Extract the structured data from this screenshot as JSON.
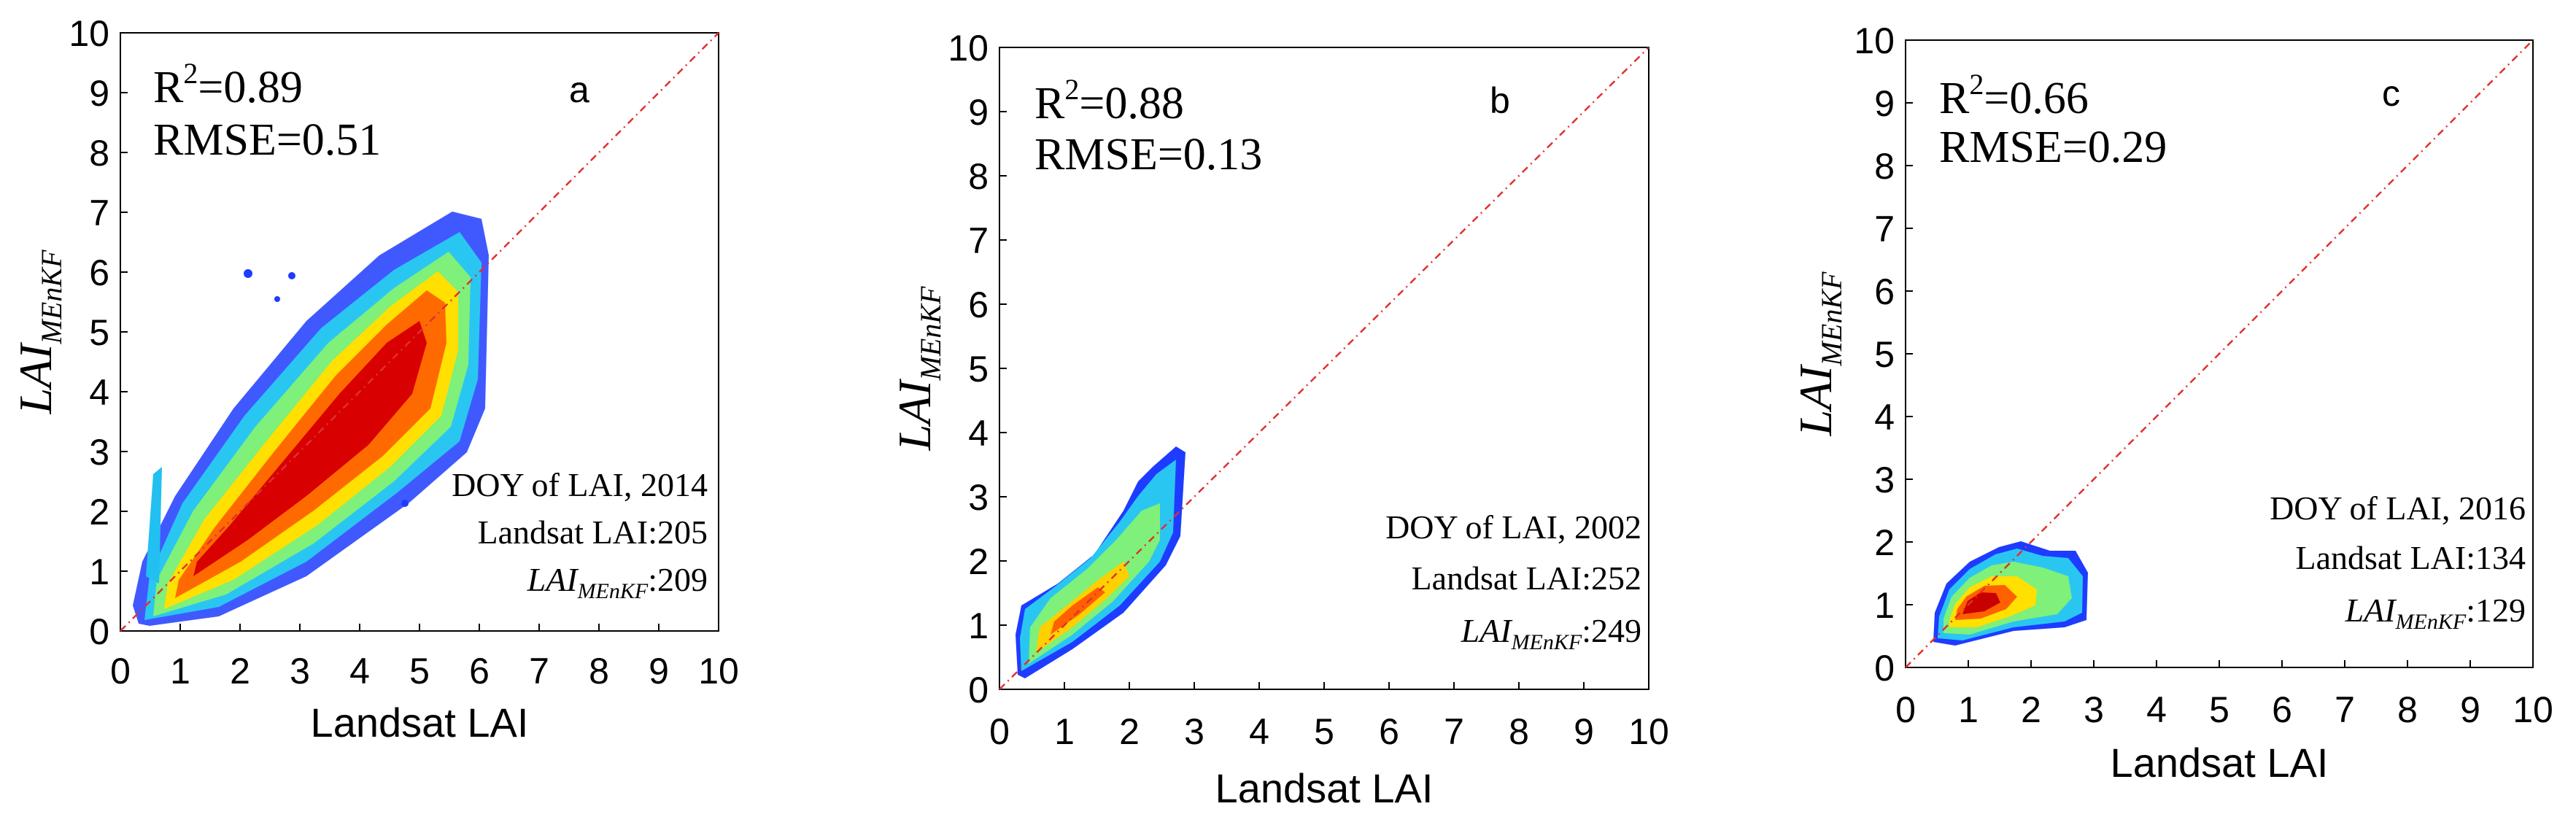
{
  "chart_data": [
    {
      "type": "scatter",
      "panel_label": "a",
      "xlabel": "Landsat LAI",
      "ylabel_main": "LAI",
      "ylabel_sub": "MEnKF",
      "xlim": [
        0,
        10
      ],
      "ylim": [
        0,
        10
      ],
      "x_ticks": [
        "0",
        "1",
        "2",
        "3",
        "4",
        "5",
        "6",
        "7",
        "8",
        "9",
        "10"
      ],
      "y_ticks": [
        "0",
        "1",
        "2",
        "3",
        "4",
        "5",
        "6",
        "7",
        "8",
        "9",
        "10"
      ],
      "r2_label": "R",
      "r2_sup": "2",
      "r2_value": "=0.89",
      "rmse": "RMSE=0.51",
      "doy_title": "DOY of LAI, 2014",
      "landsat_label": "Landsat LAI:205",
      "menkf_main": "LAI",
      "menkf_sub": "MEnKF",
      "menkf_value": ":209",
      "one_to_one_line": true,
      "density_cloud": [
        [
          0.35,
          0.2
        ],
        [
          1.5,
          1.2
        ],
        [
          2.5,
          2.3
        ],
        [
          3.5,
          3.3
        ],
        [
          4.5,
          4.2
        ],
        [
          5.5,
          5.9
        ],
        [
          5.6,
          6.7
        ]
      ]
    },
    {
      "type": "scatter",
      "panel_label": "b",
      "xlabel": "Landsat LAI",
      "ylabel_main": "LAI",
      "ylabel_sub": "MEnKF",
      "xlim": [
        0,
        10
      ],
      "ylim": [
        0,
        10
      ],
      "x_ticks": [
        "0",
        "1",
        "2",
        "3",
        "4",
        "5",
        "6",
        "7",
        "8",
        "9",
        "10"
      ],
      "y_ticks": [
        "0",
        "1",
        "2",
        "3",
        "4",
        "5",
        "6",
        "7",
        "8",
        "9",
        "10"
      ],
      "r2_label": "R",
      "r2_sup": "2",
      "r2_value": "=0.88",
      "rmse": "RMSE=0.13",
      "doy_title": "DOY of LAI, 2002",
      "landsat_label": "Landsat LAI:252",
      "menkf_main": "LAI",
      "menkf_sub": "MEnKF",
      "menkf_value": ":249",
      "one_to_one_line": true,
      "density_cloud": [
        [
          0.35,
          0.3
        ],
        [
          1.0,
          0.9
        ],
        [
          1.5,
          1.3
        ],
        [
          2.0,
          1.8
        ],
        [
          2.6,
          2.6
        ],
        [
          2.7,
          3.6
        ]
      ]
    },
    {
      "type": "scatter",
      "panel_label": "c",
      "xlabel": "Landsat LAI",
      "ylabel_main": "LAI",
      "ylabel_sub": "MEnKF",
      "xlim": [
        0,
        10
      ],
      "ylim": [
        0,
        10
      ],
      "x_ticks": [
        "0",
        "1",
        "2",
        "3",
        "4",
        "5",
        "6",
        "7",
        "8",
        "9",
        "10"
      ],
      "y_ticks": [
        "0",
        "1",
        "2",
        "3",
        "4",
        "5",
        "6",
        "7",
        "8",
        "9",
        "10"
      ],
      "r2_label": "R",
      "r2_sup": "2",
      "r2_value": "=0.66",
      "rmse": "RMSE=0.29",
      "doy_title": "DOY of LAI, 2016",
      "landsat_label": "Landsat LAI:134",
      "menkf_main": "LAI",
      "menkf_sub": "MEnKF",
      "menkf_value": ":129",
      "one_to_one_line": true,
      "density_cloud": [
        [
          0.5,
          0.5
        ],
        [
          1.0,
          0.9
        ],
        [
          1.5,
          1.2
        ],
        [
          2.0,
          1.4
        ],
        [
          2.8,
          1.7
        ]
      ]
    }
  ]
}
